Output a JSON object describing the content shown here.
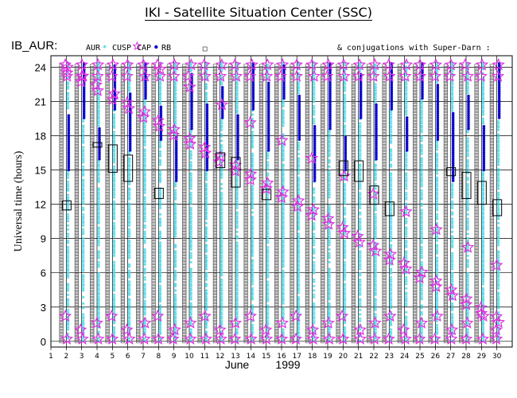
{
  "header": {
    "title": "IKI - Satellite Situation Center (SSC)",
    "panel_label": "IB_AUR:",
    "conjugation_note": "& conjugations with Super-Darn :"
  },
  "legend": [
    {
      "label": "AUR",
      "symbol": "asterisk",
      "color": "#33d6e6"
    },
    {
      "label": "CUSP",
      "symbol": "star",
      "color": "#e030e0"
    },
    {
      "label": "CAP",
      "symbol": "dot",
      "color": "#0a0ad0"
    },
    {
      "label": "RB",
      "symbol": "square",
      "color": "#555555"
    }
  ],
  "chart_data": {
    "type": "scatter",
    "title": "IKI - Satellite Situation Center (SSC)",
    "xlabel": "June 1999",
    "xlabel_month": "June",
    "xlabel_year": "1999",
    "ylabel": "Universal time (hours)",
    "xlim": [
      1,
      31
    ],
    "ylim": [
      -0.5,
      25
    ],
    "x_ticks": [
      "1",
      "2",
      "3",
      "4",
      "5",
      "6",
      "7",
      "8",
      "9",
      "10",
      "11",
      "12",
      "13",
      "14",
      "15",
      "16",
      "17",
      "18",
      "19",
      "20",
      "21",
      "22",
      "23",
      "24",
      "25",
      "26",
      "27",
      "28",
      "29",
      "30"
    ],
    "y_ticks": [
      0,
      3,
      6,
      9,
      12,
      15,
      18,
      21,
      24
    ],
    "grid": true,
    "series": [
      {
        "name": "AUR",
        "description": "aurora-zone crossings along each orbit pass",
        "color": "#33d6e6"
      },
      {
        "name": "CUSP",
        "description": "cusp crossings",
        "color": "#e030e0"
      },
      {
        "name": "CAP",
        "description": "polar cap crossings",
        "color": "#0a0ad0"
      },
      {
        "name": "RB",
        "description": "radiation belt crossings",
        "color": "#555555"
      }
    ],
    "conjugation_boxes": [
      {
        "day": 2,
        "t0": 11.5,
        "t1": 12.3
      },
      {
        "day": 4,
        "t0": 17.0,
        "t1": 17.4
      },
      {
        "day": 5,
        "t0": 14.8,
        "t1": 17.2
      },
      {
        "day": 6,
        "t0": 14.0,
        "t1": 16.3
      },
      {
        "day": 8,
        "t0": 12.5,
        "t1": 13.4
      },
      {
        "day": 12,
        "t0": 15.2,
        "t1": 16.5
      },
      {
        "day": 13,
        "t0": 13.5,
        "t1": 16.1
      },
      {
        "day": 15,
        "t0": 12.4,
        "t1": 13.3
      },
      {
        "day": 20,
        "t0": 14.5,
        "t1": 15.8
      },
      {
        "day": 21,
        "t0": 14.0,
        "t1": 15.8
      },
      {
        "day": 22,
        "t0": 12.0,
        "t1": 13.6
      },
      {
        "day": 23,
        "t0": 11.0,
        "t1": 12.2
      },
      {
        "day": 27,
        "t0": 14.5,
        "t1": 15.2
      },
      {
        "day": 28,
        "t0": 12.5,
        "t1": 14.8
      },
      {
        "day": 29,
        "t0": 12.0,
        "t1": 14.0
      },
      {
        "day": 30,
        "t0": 11.0,
        "t1": 12.4
      }
    ]
  }
}
